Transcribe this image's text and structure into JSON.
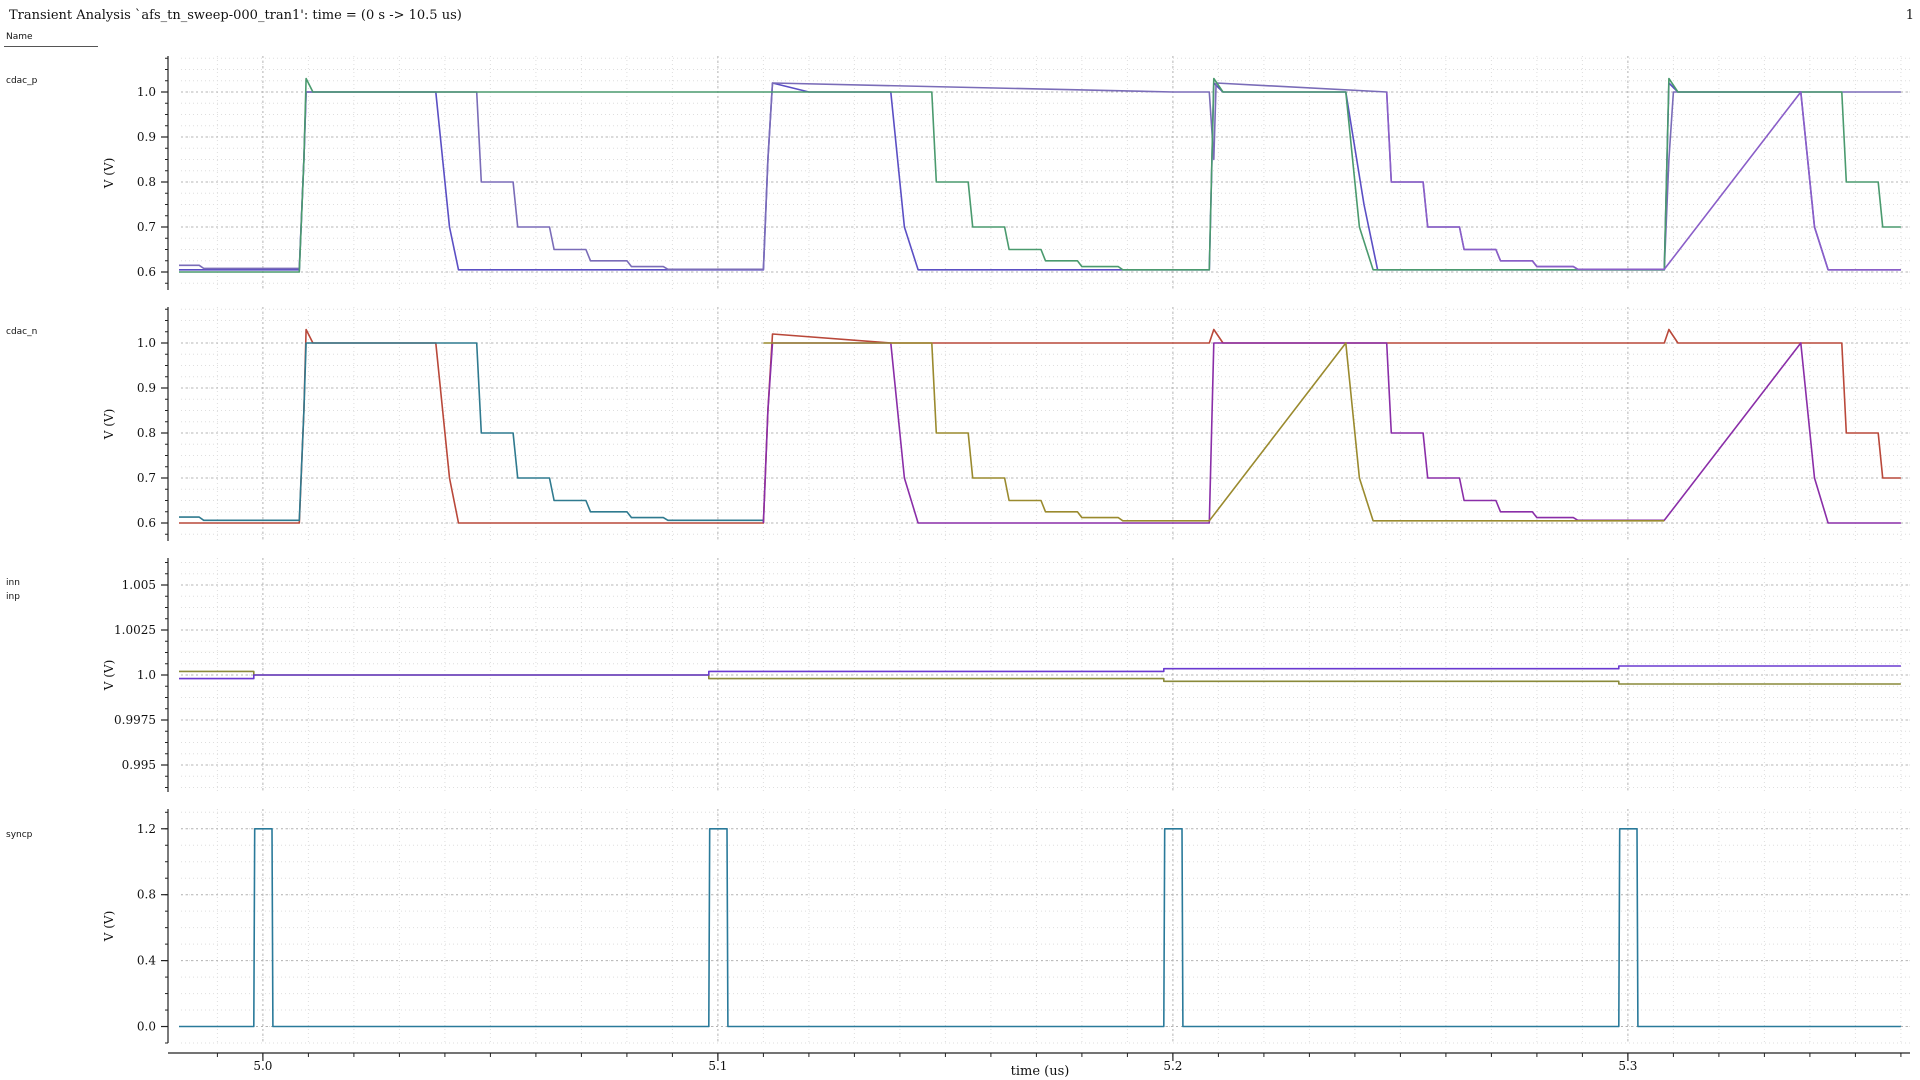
{
  "window": {
    "title": "Transient Analysis `afs_tn_sweep-000_tran1': time = (0 s -> 10.5 us)",
    "page_number": "1",
    "name_header": "Name"
  },
  "colors": {
    "axis": "#222222",
    "grid_major": "#b4b4b4",
    "grid_minor": "#dedede",
    "cdac_p_seriesA": "#5b4fc4",
    "cdac_p_seriesB": "#7a6cb8",
    "cdac_p_seriesC": "#4a9a6e",
    "cdac_p_seriesD": "#8a5ec8",
    "cdac_n_seriesA": "#b9483a",
    "cdac_n_seriesB": "#2f7a8f",
    "cdac_n_seriesC": "#8a2ea8",
    "cdac_n_seriesD": "#9a8a2e",
    "inn": "#8a8a3a",
    "inp": "#6a3ad0",
    "syncp": "#2a7a9a"
  },
  "chart_data": [
    {
      "type": "line",
      "signal": "cdac_p",
      "ylabel": "V (V)",
      "ylim": [
        0.56,
        1.08
      ],
      "yticks": [
        0.6,
        0.7,
        0.8,
        0.9,
        1.0
      ],
      "ytick_labels": [
        "0.6",
        "0.7",
        "0.8",
        "0.9",
        "1.0"
      ],
      "grid": true,
      "series": [
        {
          "color_key": "cdac_p_seriesA",
          "x": [
            4.98,
            5.008,
            5.009,
            5.0095,
            5.011,
            5.038,
            5.041,
            5.043,
            5.11,
            5.111,
            5.112,
            5.12,
            5.138,
            5.141,
            5.144,
            5.208,
            5.209,
            5.211,
            5.238,
            5.242,
            5.245,
            5.308,
            5.309,
            5.311,
            5.338,
            5.341,
            5.344,
            5.36
          ],
          "y": [
            0.605,
            0.605,
            0.85,
            1.0,
            1.0,
            1.0,
            0.7,
            0.605,
            0.605,
            0.85,
            1.02,
            1.0,
            1.0,
            0.7,
            0.605,
            0.605,
            1.02,
            1.0,
            1.0,
            0.75,
            0.605,
            0.605,
            1.02,
            1.0,
            1.0,
            0.7,
            0.605,
            0.605
          ]
        },
        {
          "color_key": "cdac_p_seriesB",
          "x": [
            4.98,
            4.986,
            4.987,
            5.008,
            5.009,
            5.0095,
            5.047,
            5.048,
            5.055,
            5.056,
            5.063,
            5.064,
            5.071,
            5.072,
            5.08,
            5.081,
            5.088,
            5.089,
            5.11,
            5.111,
            5.112,
            5.2,
            5.208,
            5.209,
            5.2095,
            5.247,
            5.248,
            5.255,
            5.256,
            5.263,
            5.264,
            5.271,
            5.272,
            5.279,
            5.28,
            5.288,
            5.289,
            5.308,
            5.309,
            5.31,
            5.36
          ],
          "y": [
            0.615,
            0.615,
            0.608,
            0.608,
            0.85,
            1.0,
            1.0,
            0.8,
            0.8,
            0.7,
            0.7,
            0.65,
            0.65,
            0.625,
            0.625,
            0.612,
            0.612,
            0.606,
            0.606,
            0.85,
            1.02,
            1.0,
            1.0,
            0.85,
            1.02,
            1.0,
            0.8,
            0.8,
            0.7,
            0.7,
            0.65,
            0.65,
            0.625,
            0.625,
            0.612,
            0.612,
            0.606,
            0.606,
            0.85,
            1.0,
            1.0
          ]
        },
        {
          "color_key": "cdac_p_seriesC",
          "x": [
            4.98,
            5.008,
            5.009,
            5.0095,
            5.011,
            5.1,
            5.138,
            5.147,
            5.148,
            5.155,
            5.156,
            5.163,
            5.164,
            5.171,
            5.172,
            5.179,
            5.18,
            5.188,
            5.189,
            5.208,
            5.209,
            5.211,
            5.238,
            5.241,
            5.244,
            5.308,
            5.309,
            5.311,
            5.347,
            5.348,
            5.355,
            5.356,
            5.36
          ],
          "y": [
            0.6,
            0.6,
            0.85,
            1.03,
            1.0,
            1.0,
            1.0,
            1.0,
            0.8,
            0.8,
            0.7,
            0.7,
            0.65,
            0.65,
            0.625,
            0.625,
            0.612,
            0.612,
            0.605,
            0.605,
            1.03,
            1.0,
            1.0,
            0.7,
            0.605,
            0.605,
            1.03,
            1.0,
            1.0,
            0.8,
            0.8,
            0.7,
            0.7
          ]
        },
        {
          "color_key": "cdac_p_seriesD",
          "x": [
            5.247,
            5.248,
            5.255,
            5.256,
            5.263,
            5.264,
            5.271,
            5.272,
            5.279,
            5.28,
            5.288,
            5.289,
            5.308,
            5.338,
            5.341,
            5.344,
            5.36
          ],
          "y": [
            1.0,
            0.8,
            0.8,
            0.7,
            0.7,
            0.65,
            0.65,
            0.625,
            0.625,
            0.612,
            0.612,
            0.606,
            0.606,
            1.0,
            0.7,
            0.605,
            0.605
          ]
        }
      ]
    },
    {
      "type": "line",
      "signal": "cdac_n",
      "ylabel": "V (V)",
      "ylim": [
        0.56,
        1.08
      ],
      "yticks": [
        0.6,
        0.7,
        0.8,
        0.9,
        1.0
      ],
      "ytick_labels": [
        "0.6",
        "0.7",
        "0.8",
        "0.9",
        "1.0"
      ],
      "grid": true,
      "series": [
        {
          "color_key": "cdac_n_seriesA",
          "x": [
            4.98,
            5.008,
            5.009,
            5.0095,
            5.011,
            5.038,
            5.041,
            5.043,
            5.11,
            5.111,
            5.112,
            5.138,
            5.208,
            5.209,
            5.211,
            5.308,
            5.309,
            5.311,
            5.347,
            5.348,
            5.355,
            5.356,
            5.36
          ],
          "y": [
            0.6,
            0.6,
            0.85,
            1.03,
            1.0,
            1.0,
            0.7,
            0.6,
            0.6,
            0.85,
            1.02,
            1.0,
            1.0,
            1.03,
            1.0,
            1.0,
            1.03,
            1.0,
            1.0,
            0.8,
            0.8,
            0.7,
            0.7
          ]
        },
        {
          "color_key": "cdac_n_seriesB",
          "x": [
            4.98,
            4.986,
            4.987,
            5.008,
            5.009,
            5.0095,
            5.047,
            5.048,
            5.055,
            5.056,
            5.063,
            5.064,
            5.071,
            5.072,
            5.08,
            5.081,
            5.088,
            5.089,
            5.11
          ],
          "y": [
            0.613,
            0.613,
            0.606,
            0.606,
            0.85,
            1.0,
            1.0,
            0.8,
            0.8,
            0.7,
            0.7,
            0.65,
            0.65,
            0.625,
            0.625,
            0.612,
            0.612,
            0.606,
            0.606
          ]
        },
        {
          "color_key": "cdac_n_seriesC",
          "x": [
            5.11,
            5.111,
            5.112,
            5.138,
            5.141,
            5.144,
            5.208,
            5.209,
            5.211,
            5.247,
            5.248,
            5.255,
            5.256,
            5.263,
            5.264,
            5.271,
            5.272,
            5.279,
            5.28,
            5.288,
            5.289,
            5.308,
            5.338,
            5.341,
            5.344,
            5.36
          ],
          "y": [
            0.6,
            0.85,
            1.0,
            1.0,
            0.7,
            0.6,
            0.6,
            1.0,
            1.0,
            1.0,
            0.8,
            0.8,
            0.7,
            0.7,
            0.65,
            0.65,
            0.625,
            0.625,
            0.612,
            0.612,
            0.606,
            0.606,
            1.0,
            0.7,
            0.6,
            0.6
          ]
        },
        {
          "color_key": "cdac_n_seriesD",
          "x": [
            5.11,
            5.147,
            5.148,
            5.155,
            5.156,
            5.163,
            5.164,
            5.171,
            5.172,
            5.179,
            5.18,
            5.188,
            5.189,
            5.208,
            5.238,
            5.241,
            5.244,
            5.308
          ],
          "y": [
            1.0,
            1.0,
            0.8,
            0.8,
            0.7,
            0.7,
            0.65,
            0.65,
            0.625,
            0.625,
            0.612,
            0.612,
            0.605,
            0.605,
            1.0,
            0.7,
            0.605,
            0.605
          ]
        }
      ]
    },
    {
      "type": "line",
      "signals": [
        "inn",
        "inp"
      ],
      "ylabel": "V (V)",
      "ylim": [
        0.9935,
        1.0065
      ],
      "yticks": [
        0.995,
        0.9975,
        1.0,
        1.0025,
        1.005
      ],
      "ytick_labels": [
        "0.995",
        "0.9975",
        "1.0",
        "1.0025",
        "1.005"
      ],
      "grid": true,
      "series": [
        {
          "name": "inn",
          "color_key": "inn",
          "x": [
            4.98,
            4.998,
            4.998,
            5.098,
            5.098,
            5.198,
            5.198,
            5.298,
            5.298,
            5.36
          ],
          "y": [
            1.0002,
            1.0002,
            1.0,
            1.0,
            0.9998,
            0.9998,
            0.99965,
            0.99965,
            0.9995,
            0.9995
          ]
        },
        {
          "name": "inp",
          "color_key": "inp",
          "x": [
            4.98,
            4.998,
            4.998,
            5.098,
            5.098,
            5.198,
            5.198,
            5.298,
            5.298,
            5.36
          ],
          "y": [
            0.9998,
            0.9998,
            1.0,
            1.0,
            1.0002,
            1.0002,
            1.00035,
            1.00035,
            1.0005,
            1.0005
          ]
        }
      ]
    },
    {
      "type": "line",
      "signal": "syncp",
      "ylabel": "V (V)",
      "ylim": [
        -0.1,
        1.32
      ],
      "yticks": [
        0.0,
        0.4,
        0.8,
        1.2
      ],
      "ytick_labels": [
        "0.0",
        "0.4",
        "0.8",
        "1.2"
      ],
      "grid": true,
      "series": [
        {
          "name": "syncp",
          "color_key": "syncp",
          "x": [
            4.98,
            4.998,
            4.9982,
            5.002,
            5.0022,
            5.098,
            5.0982,
            5.102,
            5.1022,
            5.198,
            5.1982,
            5.202,
            5.2022,
            5.298,
            5.2982,
            5.302,
            5.3022,
            5.36
          ],
          "y": [
            0,
            0,
            1.2,
            1.2,
            0,
            0,
            1.2,
            1.2,
            0,
            0,
            1.2,
            1.2,
            0,
            0,
            1.2,
            1.2,
            0,
            0
          ]
        }
      ]
    }
  ],
  "x_axis": {
    "xlabel": "time (us)",
    "xlim": [
      4.982,
      5.362
    ],
    "xticks": [
      5.0,
      5.1,
      5.2,
      5.3
    ],
    "xtick_labels": [
      "5.0",
      "5.1",
      "5.2",
      "5.3"
    ]
  }
}
